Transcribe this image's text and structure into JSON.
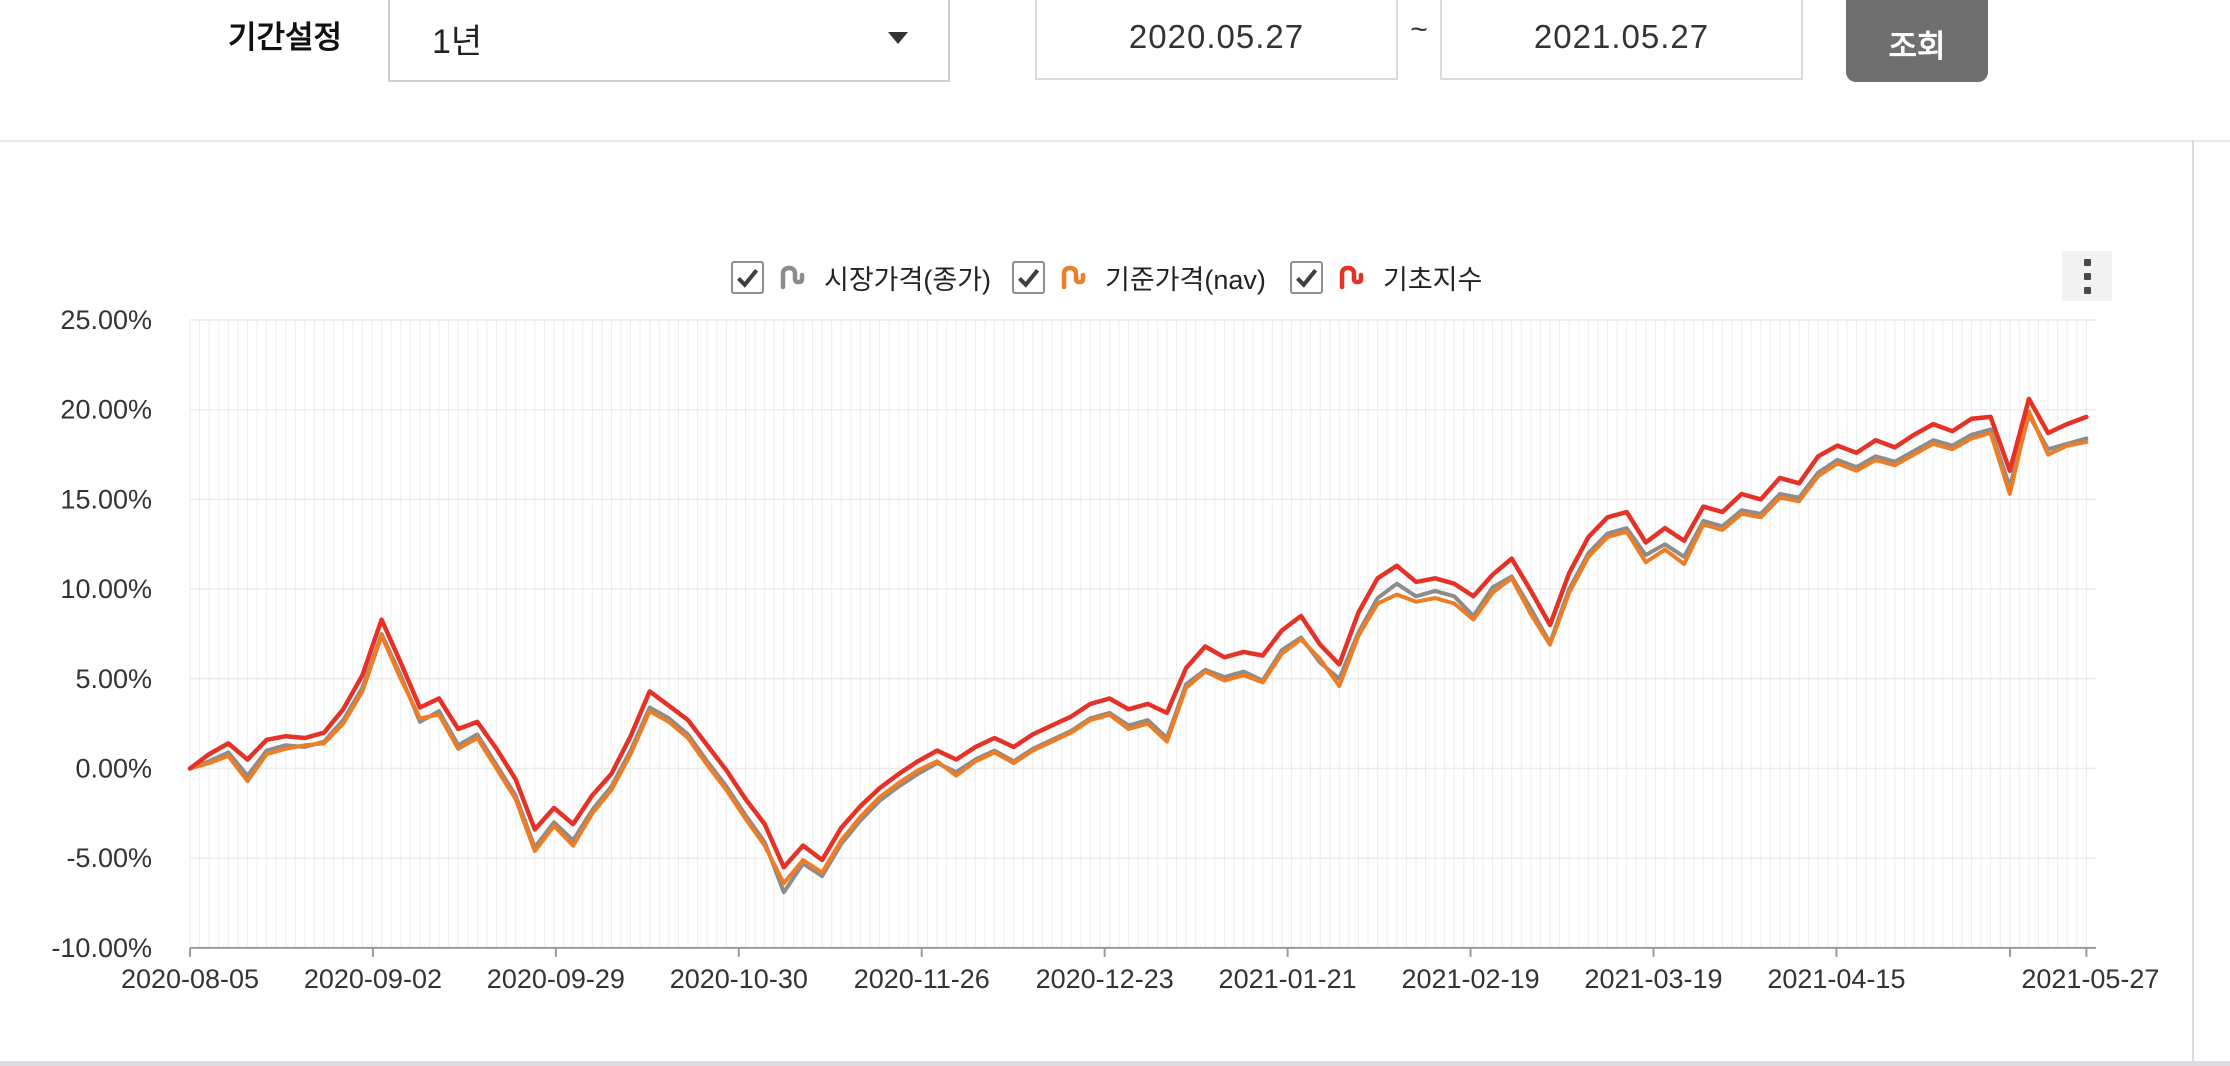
{
  "controls": {
    "period_label": "기간설정",
    "period_value": "1년",
    "date_from": "2020.05.27",
    "date_separator": "~",
    "date_to": "2021.05.27",
    "query_button": "조회"
  },
  "legend": {
    "items": [
      {
        "label": "시장가격(종가)",
        "color": "#8c8c8c",
        "checked": true
      },
      {
        "label": "기준가격(nav)",
        "color": "#ee7d26",
        "checked": true
      },
      {
        "label": "기초지수",
        "color": "#e63226",
        "checked": true
      }
    ]
  },
  "icons": {
    "kebab_menu": "vertical-ellipsis",
    "legend_icon": "line-squiggle",
    "dropdown_caret": "triangle-down"
  },
  "chart_data": {
    "type": "line",
    "title": "",
    "xlabel": "",
    "ylabel": "",
    "ylim": [
      -10,
      25
    ],
    "grid": "both",
    "legend_position": "top-center",
    "n_points": 100,
    "y_tick_labels": [
      "25.00%",
      "20.00%",
      "15.00%",
      "10.00%",
      "5.00%",
      "0.00%",
      "-5.00%",
      "-10.00%"
    ],
    "y_tick_values": [
      25,
      20,
      15,
      10,
      5,
      0,
      -5,
      -10
    ],
    "x_tick_labels": [
      "2020-08-05",
      "2020-09-02",
      "2020-09-29",
      "2020-10-30",
      "2020-11-26",
      "2020-12-23",
      "2021-01-21",
      "2021-02-19",
      "2021-03-19",
      "2021-04-15",
      "2021-05-27"
    ],
    "series": [
      {
        "name": "시장가격(종가)",
        "color": "#8c8c8c",
        "width": 4,
        "values": [
          0.0,
          0.4,
          0.9,
          -0.4,
          1.0,
          1.3,
          1.2,
          1.5,
          2.7,
          4.5,
          7.5,
          5.2,
          2.6,
          3.2,
          1.3,
          1.9,
          0.2,
          -1.5,
          -4.4,
          -3.0,
          -4.0,
          -2.3,
          -1.0,
          1.0,
          3.4,
          2.8,
          1.9,
          0.4,
          -1.0,
          -2.6,
          -4.1,
          -6.9,
          -5.3,
          -6.0,
          -4.2,
          -2.9,
          -1.8,
          -1.0,
          -0.3,
          0.3,
          -0.2,
          0.5,
          1.0,
          0.4,
          1.1,
          1.6,
          2.1,
          2.8,
          3.1,
          2.4,
          2.7,
          1.7,
          4.7,
          5.5,
          5.1,
          5.4,
          4.9,
          6.6,
          7.3,
          5.9,
          5.0,
          7.6,
          9.5,
          10.3,
          9.6,
          9.9,
          9.6,
          8.5,
          10.1,
          10.7,
          8.9,
          7.0,
          10.0,
          12.0,
          13.1,
          13.4,
          11.9,
          12.5,
          11.8,
          13.8,
          13.5,
          14.4,
          14.2,
          15.3,
          15.1,
          16.5,
          17.2,
          16.8,
          17.4,
          17.1,
          17.7,
          18.3,
          18.0,
          18.6,
          18.9,
          15.7,
          19.7,
          17.8,
          18.1,
          18.4
        ]
      },
      {
        "name": "기준가격(nav)",
        "color": "#ee7d26",
        "width": 4,
        "values": [
          0.0,
          0.3,
          0.7,
          -0.7,
          0.8,
          1.1,
          1.3,
          1.4,
          2.5,
          4.3,
          7.4,
          5.0,
          2.8,
          3.0,
          1.1,
          1.7,
          0.0,
          -1.7,
          -4.6,
          -3.2,
          -4.3,
          -2.5,
          -1.2,
          0.8,
          3.2,
          2.6,
          1.7,
          0.2,
          -1.2,
          -2.8,
          -4.3,
          -6.4,
          -5.1,
          -5.8,
          -4.0,
          -2.7,
          -1.6,
          -0.8,
          -0.1,
          0.4,
          -0.4,
          0.4,
          0.9,
          0.3,
          1.0,
          1.5,
          2.0,
          2.7,
          3.0,
          2.2,
          2.5,
          1.5,
          4.5,
          5.4,
          4.9,
          5.2,
          4.8,
          6.4,
          7.2,
          6.1,
          4.6,
          7.4,
          9.2,
          9.7,
          9.3,
          9.5,
          9.2,
          8.3,
          9.8,
          10.6,
          8.6,
          6.9,
          9.8,
          11.8,
          12.9,
          13.2,
          11.5,
          12.2,
          11.4,
          13.6,
          13.3,
          14.2,
          14.0,
          15.1,
          14.9,
          16.3,
          17.0,
          16.6,
          17.2,
          16.9,
          17.5,
          18.1,
          17.8,
          18.4,
          18.7,
          15.3,
          19.9,
          17.5,
          18.0,
          18.2
        ]
      },
      {
        "name": "기초지수",
        "color": "#e63226",
        "width": 4.5,
        "values": [
          0.0,
          0.8,
          1.4,
          0.5,
          1.6,
          1.8,
          1.7,
          2.0,
          3.3,
          5.2,
          8.3,
          5.9,
          3.4,
          3.9,
          2.2,
          2.6,
          1.1,
          -0.6,
          -3.4,
          -2.2,
          -3.1,
          -1.5,
          -0.3,
          1.8,
          4.3,
          3.5,
          2.7,
          1.3,
          -0.1,
          -1.7,
          -3.1,
          -5.5,
          -4.3,
          -5.1,
          -3.3,
          -2.1,
          -1.1,
          -0.3,
          0.4,
          1.0,
          0.5,
          1.2,
          1.7,
          1.2,
          1.9,
          2.4,
          2.9,
          3.6,
          3.9,
          3.3,
          3.6,
          3.1,
          5.6,
          6.8,
          6.2,
          6.5,
          6.3,
          7.7,
          8.5,
          6.9,
          5.8,
          8.7,
          10.6,
          11.3,
          10.4,
          10.6,
          10.3,
          9.6,
          10.8,
          11.7,
          9.9,
          8.0,
          10.9,
          12.9,
          14.0,
          14.3,
          12.6,
          13.4,
          12.7,
          14.6,
          14.3,
          15.3,
          15.0,
          16.2,
          15.9,
          17.4,
          18.0,
          17.6,
          18.3,
          17.9,
          18.6,
          19.2,
          18.8,
          19.5,
          19.6,
          16.6,
          20.6,
          18.7,
          19.2,
          19.6
        ]
      }
    ]
  }
}
